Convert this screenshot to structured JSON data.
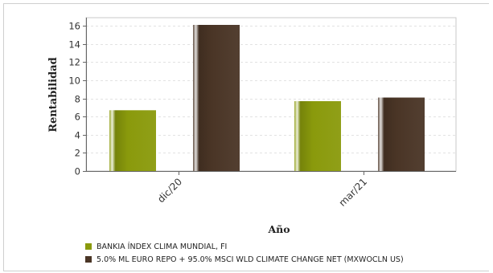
{
  "chart_data": {
    "type": "bar",
    "title": "",
    "xlabel": "Año",
    "ylabel": "Rentabilidad",
    "categories": [
      "dic/20",
      "mar/21"
    ],
    "series": [
      {
        "name": "BANKIA ÍNDEX CLIMA MUNDIAL, FI",
        "values": [
          6.7,
          7.7
        ],
        "color": "#8a9a0c"
      },
      {
        "name": "5.0% ML EURO REPO + 95.0% MSCI WLD CLIMATE CHANGE NET (MXWOCLN US)",
        "values": [
          16.1,
          8.1
        ],
        "color": "#4a3526"
      }
    ],
    "ylim": [
      0,
      16.9
    ],
    "yticks": [
      0,
      2,
      4,
      6,
      8,
      10,
      12,
      14,
      16
    ],
    "grid": true,
    "legend_position": "bottom-left"
  }
}
